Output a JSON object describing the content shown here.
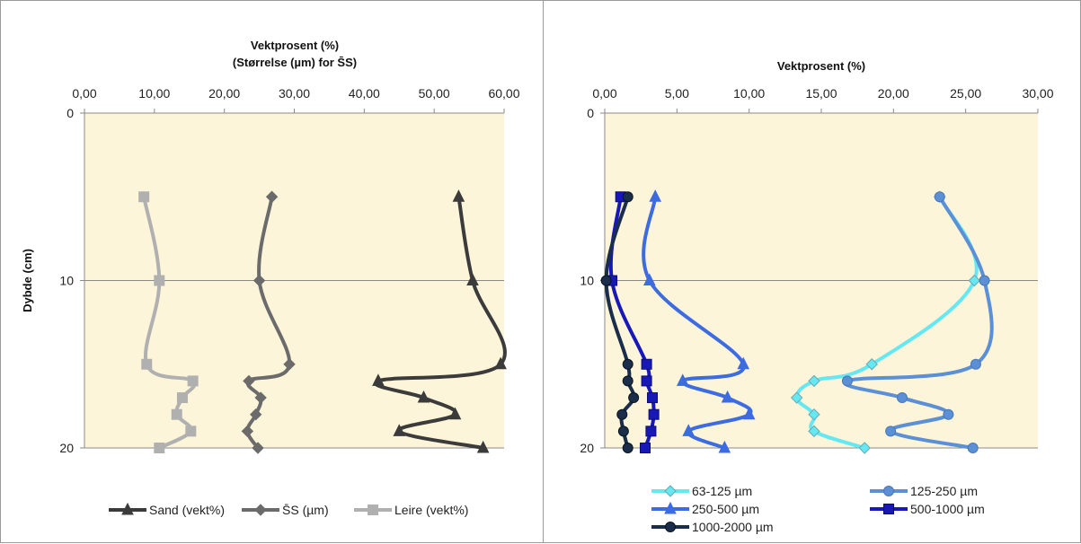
{
  "chart_data": [
    {
      "type": "line",
      "title_lines": [
        "Vektprosent (%)",
        "(Størrelse (µm) for S̄S)"
      ],
      "xlabel": "",
      "ylabel": "Dybde (cm)",
      "xlim": [
        0,
        60
      ],
      "ylim": [
        0,
        20
      ],
      "y_inverted": true,
      "x_ticks": [
        "0,00",
        "10,00",
        "20,00",
        "30,00",
        "40,00",
        "50,00",
        "60,00"
      ],
      "x_tick_values": [
        0,
        10,
        20,
        30,
        40,
        50,
        60
      ],
      "y_ticks": [
        "0",
        "10",
        "20"
      ],
      "y_tick_values": [
        0,
        10,
        20
      ],
      "grid": "horizontal",
      "plot_background": "#fdf5d9",
      "legend_position": "bottom",
      "series": [
        {
          "name": "Sand (vekt%)",
          "color": "#3b3b3b",
          "marker": "triangle",
          "points": [
            [
              53.5,
              5
            ],
            [
              55.5,
              10
            ],
            [
              59.5,
              15
            ],
            [
              42,
              16
            ],
            [
              48.5,
              17
            ],
            [
              53,
              18
            ],
            [
              45,
              19
            ],
            [
              57,
              20
            ]
          ]
        },
        {
          "name": "S̄S (µm)",
          "color": "#6b6b6b",
          "marker": "diamond",
          "points": [
            [
              26.8,
              5
            ],
            [
              25,
              10
            ],
            [
              29.3,
              15
            ],
            [
              23.5,
              16
            ],
            [
              25.2,
              17
            ],
            [
              24.5,
              18
            ],
            [
              23.3,
              19
            ],
            [
              24.8,
              20
            ]
          ]
        },
        {
          "name": "Leire (vekt%)",
          "color": "#b0b0b0",
          "marker": "square",
          "points": [
            [
              8.5,
              5
            ],
            [
              10.7,
              10
            ],
            [
              8.9,
              15
            ],
            [
              15.5,
              16
            ],
            [
              14,
              17
            ],
            [
              13.2,
              18
            ],
            [
              15.2,
              19
            ],
            [
              10.7,
              20
            ]
          ]
        }
      ]
    },
    {
      "type": "line",
      "title_lines": [
        "Vektprosent (%)"
      ],
      "xlabel": "",
      "ylabel": "",
      "xlim": [
        0,
        30
      ],
      "ylim": [
        0,
        20
      ],
      "y_inverted": true,
      "x_ticks": [
        "0,00",
        "5,00",
        "10,00",
        "15,00",
        "20,00",
        "25,00",
        "30,00"
      ],
      "x_tick_values": [
        0,
        5,
        10,
        15,
        20,
        25,
        30
      ],
      "y_ticks": [
        "0",
        "10",
        "20"
      ],
      "y_tick_values": [
        0,
        10,
        20
      ],
      "grid": "horizontal",
      "plot_background": "#fdf5d9",
      "legend_position": "bottom",
      "series": [
        {
          "name": "63-125 µm",
          "color": "#66e8f2",
          "marker": "diamond",
          "points": [
            [
              23.2,
              5
            ],
            [
              25.6,
              10
            ],
            [
              18.5,
              15
            ],
            [
              14.5,
              16
            ],
            [
              13.3,
              17
            ],
            [
              14.5,
              18
            ],
            [
              14.5,
              19
            ],
            [
              18,
              20
            ]
          ]
        },
        {
          "name": "125-250 µm",
          "color": "#5b8fd6",
          "marker": "circle",
          "points": [
            [
              23.2,
              5
            ],
            [
              26.3,
              10
            ],
            [
              25.7,
              15
            ],
            [
              16.8,
              16
            ],
            [
              20.6,
              17
            ],
            [
              23.8,
              18
            ],
            [
              19.8,
              19
            ],
            [
              25.5,
              20
            ]
          ]
        },
        {
          "name": "250-500 µm",
          "color": "#3d6be0",
          "marker": "triangle",
          "points": [
            [
              3.5,
              5
            ],
            [
              3.1,
              10
            ],
            [
              9.6,
              15
            ],
            [
              5.4,
              16
            ],
            [
              8.5,
              17
            ],
            [
              10,
              18
            ],
            [
              5.8,
              19
            ],
            [
              8.3,
              20
            ]
          ]
        },
        {
          "name": "500-1000 µm",
          "color": "#1818b8",
          "marker": "square",
          "points": [
            [
              1.1,
              5
            ],
            [
              0.5,
              10
            ],
            [
              2.9,
              15
            ],
            [
              2.9,
              16
            ],
            [
              3.3,
              17
            ],
            [
              3.4,
              18
            ],
            [
              3.2,
              19
            ],
            [
              2.8,
              20
            ]
          ]
        },
        {
          "name": "1000-2000 µm",
          "color": "#1a2d4a",
          "marker": "circle",
          "points": [
            [
              1.6,
              5
            ],
            [
              0.1,
              10
            ],
            [
              1.6,
              15
            ],
            [
              1.6,
              16
            ],
            [
              2,
              17
            ],
            [
              1.2,
              18
            ],
            [
              1.3,
              19
            ],
            [
              1.6,
              20
            ]
          ]
        }
      ]
    }
  ]
}
